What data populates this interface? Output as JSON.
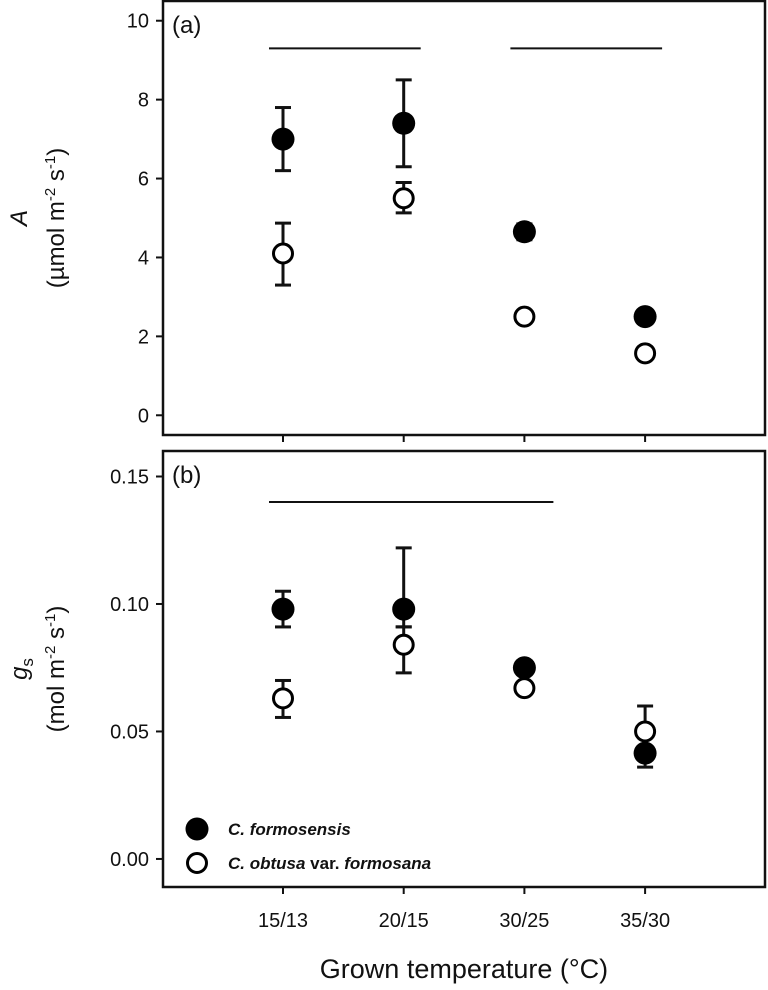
{
  "chart_data": [
    {
      "type": "scatter",
      "panel_label": "(a)",
      "ylabel_symbol": "A",
      "ylabel_units": "(µmol m",
      "ylabel_exp1": "-2",
      "ylabel_mid": " s",
      "ylabel_exp2": "-1",
      "ylabel_end": ")",
      "ylim": [
        -0.5,
        10.5
      ],
      "yticks": [
        "0",
        "2",
        "4",
        "6",
        "8",
        "10"
      ],
      "ytick_values": [
        0,
        2,
        4,
        6,
        8,
        10
      ],
      "categories": [
        "15/13",
        "20/15",
        "30/25",
        "35/30"
      ],
      "series": [
        {
          "name": "C. formosensis",
          "marker": "filled",
          "values": [
            7.0,
            7.4,
            4.65,
            2.5
          ],
          "err_low": [
            6.2,
            6.3,
            4.45,
            2.45
          ],
          "err_high": [
            7.8,
            8.5,
            4.85,
            2.55
          ]
        },
        {
          "name": "C. obtusa var. formosana",
          "marker": "open",
          "values": [
            4.1,
            5.5,
            2.5,
            1.57
          ],
          "err_low": [
            3.3,
            5.13,
            2.45,
            1.52
          ],
          "err_high": [
            4.87,
            5.9,
            2.55,
            1.62
          ]
        }
      ],
      "significance_lines": [
        {
          "y": 9.3,
          "from": "15/13",
          "to": "20/15"
        },
        {
          "y": 9.3,
          "from": "30/25",
          "to": "35/30"
        }
      ],
      "grid": false
    },
    {
      "type": "scatter",
      "panel_label": "(b)",
      "ylabel_symbol": "g",
      "ylabel_symbol_sub": "s",
      "ylabel_units": "(mol m",
      "ylabel_exp1": "-2",
      "ylabel_mid": " s",
      "ylabel_exp2": "-1",
      "ylabel_end": ")",
      "ylim": [
        -0.011,
        0.16
      ],
      "yticks": [
        "0.00",
        "0.05",
        "0.10",
        "0.15"
      ],
      "ytick_values": [
        0,
        0.05,
        0.1,
        0.15
      ],
      "categories": [
        "15/13",
        "20/15",
        "30/25",
        "35/30"
      ],
      "series": [
        {
          "name": "C. formosensis",
          "marker": "filled",
          "values": [
            0.098,
            0.098,
            0.075,
            0.0415
          ],
          "err_low": [
            0.091,
            0.091,
            0.074,
            0.036
          ],
          "err_high": [
            0.105,
            0.122,
            0.076,
            0.043
          ]
        },
        {
          "name": "C. obtusa var. formosana",
          "marker": "open",
          "values": [
            0.063,
            0.084,
            0.067,
            0.05
          ],
          "err_low": [
            0.0555,
            0.073,
            0.066,
            0.049
          ],
          "err_high": [
            0.07,
            0.091,
            0.068,
            0.06
          ]
        }
      ],
      "significance_lines": [
        {
          "y": 0.14,
          "from": "15/13",
          "to": "30/25"
        }
      ],
      "grid": false,
      "legend": {
        "placement": "bottom-left",
        "items": [
          {
            "marker": "filled",
            "italic1": "C. formosensis",
            "plain": "",
            "italic2": ""
          },
          {
            "marker": "open",
            "italic1": "C. obtusa",
            "plain": " var. ",
            "italic2": "formosana"
          }
        ]
      }
    }
  ],
  "xlabel": "Grown temperature (°C)"
}
